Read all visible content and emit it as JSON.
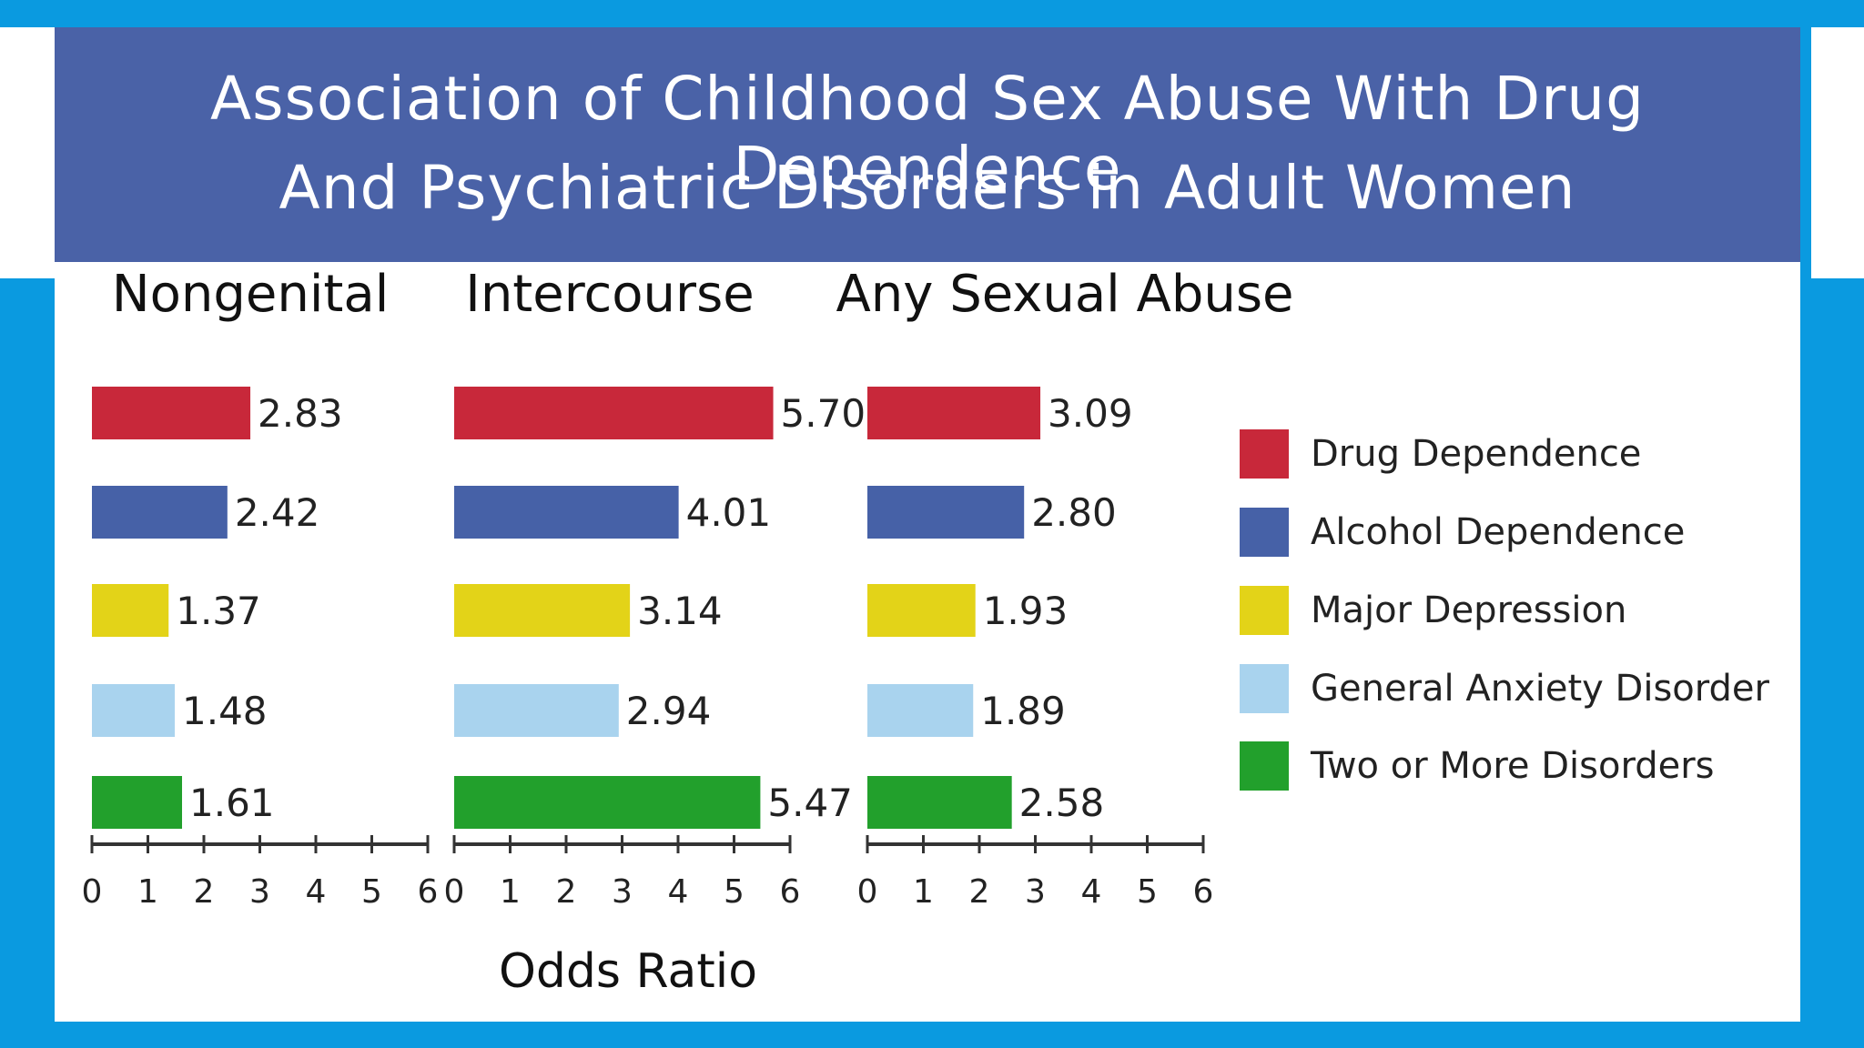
{
  "title": {
    "line1": "Association of Childhood Sex Abuse With Drug Dependence",
    "line2": "And Psychiatric Disorders in Adult Women"
  },
  "chart_data": {
    "type": "bar",
    "orientation": "horizontal",
    "title": "Association of Childhood Sex Abuse With Drug Dependence And Psychiatric Disorders in Adult Women",
    "xlabel": "Odds Ratio",
    "xlim": [
      0,
      6
    ],
    "ticks": [
      "0",
      "1",
      "2",
      "3",
      "4",
      "5",
      "6"
    ],
    "panels": [
      "Nongenital",
      "Intercourse",
      "Any Sexual Abuse"
    ],
    "series": [
      {
        "name": "Drug Dependence",
        "color": "#c8283a",
        "values": [
          2.83,
          5.7,
          3.09
        ],
        "labels": [
          "2.83",
          "5.70",
          "3.09"
        ]
      },
      {
        "name": "Alcohol Dependence",
        "color": "#4661a7",
        "values": [
          2.42,
          4.01,
          2.8
        ],
        "labels": [
          "2.42",
          "4.01",
          "2.80"
        ]
      },
      {
        "name": "Major Depression",
        "color": "#e3d318",
        "values": [
          1.37,
          3.14,
          1.93
        ],
        "labels": [
          "1.37",
          "3.14",
          "1.93"
        ]
      },
      {
        "name": "General Anxiety Disorder",
        "color": "#a9d3ee",
        "values": [
          1.48,
          2.94,
          1.89
        ],
        "labels": [
          "1.48",
          "2.94",
          "1.89"
        ]
      },
      {
        "name": "Two or More Disorders",
        "color": "#22a02c",
        "values": [
          1.61,
          5.47,
          2.58
        ],
        "labels": [
          "1.61",
          "5.47",
          "2.58"
        ]
      }
    ],
    "legend_position": "right"
  }
}
